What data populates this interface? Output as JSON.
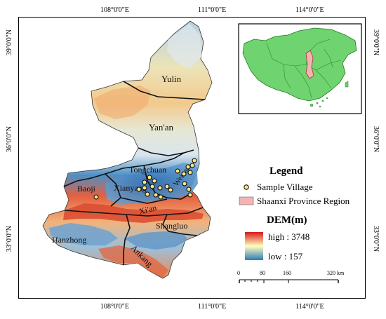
{
  "coordinates": {
    "top": [
      "108°0'0\"E",
      "111°0'0\"E",
      "114°0'0\"E"
    ],
    "bottom": [
      "108°0'0\"E",
      "111°0'0\"E",
      "114°0'0\"E"
    ],
    "left": [
      "39°0'0\"N",
      "36°0'0\"N",
      "33°0'0\"N"
    ],
    "right": [
      "39°0'0\"N",
      "36°0'0\"N",
      "33°0'0\"N"
    ]
  },
  "regions": {
    "yulin": "Yulin",
    "yanan": "Yan'an",
    "tongchuan": "Tongchuan",
    "weinan": "Weinan",
    "baoji": "Baoji",
    "xianyang": "Xianyang",
    "xian": "Xi'an",
    "shangluo": "Shangluo",
    "hanzhong": "Hanzhong",
    "ankang": "Ankang"
  },
  "legend": {
    "title": "Legend",
    "sample_village": "Sample Village",
    "province_region": "Shaanxi Province Region",
    "dem_title": "DEM(m)",
    "high": "high : 3748",
    "low": "low : 157"
  },
  "scale_bar": {
    "labels": [
      "0",
      "80",
      "160",
      "320 km"
    ]
  },
  "colors": {
    "dem_high": "#d7191c",
    "dem_mid": "#ffffbf",
    "dem_low": "#2c7bb6",
    "village_fill": "#ffe680",
    "province_highlight": "#f4b4b4",
    "inset_china": "#6fd36f"
  },
  "sample_villages": 22
}
